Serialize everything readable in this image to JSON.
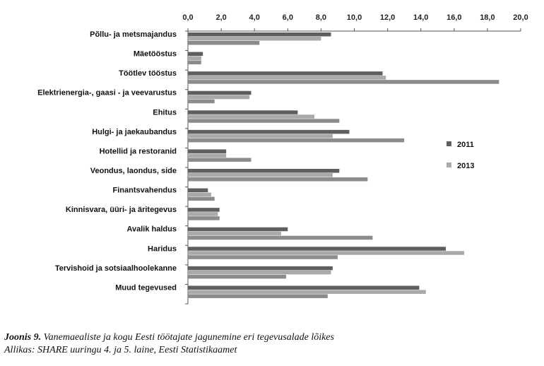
{
  "chart_data": {
    "type": "bar",
    "orientation": "horizontal",
    "categories": [
      "Põllu- ja metsmajandus",
      "Mäetööstus",
      "Töötlev tööstus",
      "Elektrienergia-, gaasi - ja veevarustus",
      "Ehitus",
      "Hulgi- ja jaekaubandus",
      "Hotellid ja restoranid",
      "Veondus, laondus, side",
      "Finantsvahendus",
      "Kinnisvara, üüri- ja äritegevus",
      "Avalik haldus",
      "Haridus",
      "Tervishoid ja sotsiaalhoolekanne",
      "Muud tegevused"
    ],
    "series": [
      {
        "name": "2011",
        "color": "#5f5f5f",
        "values": [
          8.6,
          0.9,
          11.7,
          3.8,
          6.6,
          9.7,
          2.3,
          9.1,
          1.2,
          1.9,
          6.0,
          15.5,
          8.7,
          13.9
        ]
      },
      {
        "name": "2013",
        "color": "#a9a9a9",
        "values": [
          8.0,
          0.8,
          11.9,
          3.7,
          7.6,
          8.7,
          2.3,
          8.7,
          1.4,
          1.8,
          5.6,
          16.6,
          8.6,
          14.3
        ]
      },
      {
        "name": "",
        "color": "#8c8c8c",
        "values": [
          4.3,
          0.8,
          18.7,
          1.6,
          9.1,
          13.0,
          3.8,
          10.8,
          1.6,
          1.9,
          11.1,
          9.0,
          5.9,
          8.4
        ]
      }
    ],
    "x_ticks": [
      "0,0",
      "2,0",
      "4,0",
      "6,0",
      "8,0",
      "10,0",
      "12,0",
      "14,0",
      "16,0",
      "18,0",
      "20,0"
    ],
    "xlim": [
      0,
      20
    ],
    "title": "",
    "xlabel": "",
    "ylabel": "",
    "grid": false,
    "legend_position": "right"
  },
  "caption": {
    "label": "Joonis 9.",
    "text": " Vanemaealiste ja kogu Eesti töötajate jagunemine eri tegevusalade lõikes",
    "source": "Allikas: SHARE uuringu 4. ja 5. laine, Eesti Statistikaamet"
  }
}
